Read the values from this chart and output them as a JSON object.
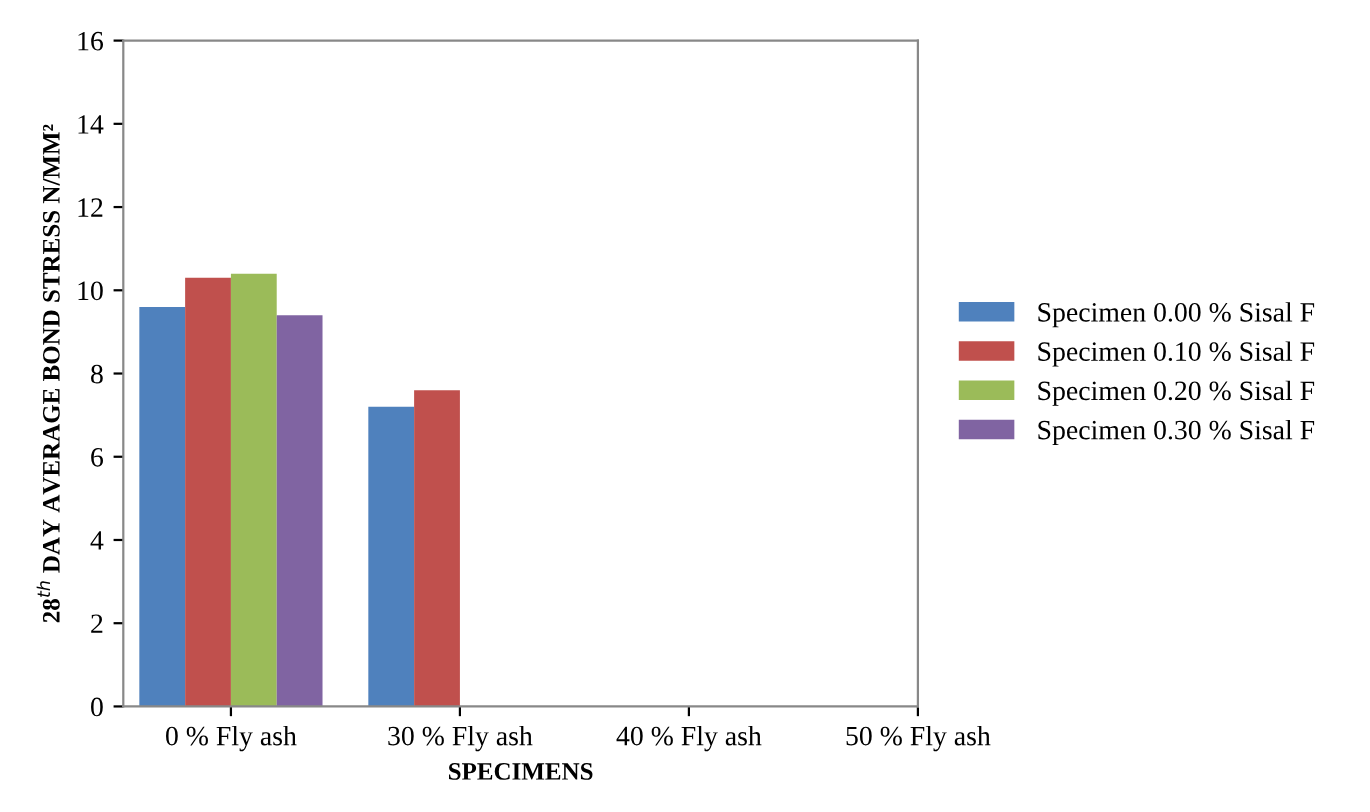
{
  "chart_data": {
    "type": "bar",
    "xlabel": "SPECIMENS",
    "ylabel": "28$^{th}$ DAY AVERAGE BOND STRESS N/MM²",
    "categories": [
      "0 % Fly ash",
      "30 % Fly ash",
      "40 % Fly ash",
      "50 % Fly ash"
    ],
    "series": [
      {
        "name": "Specimen 0.00 % Sisal F",
        "color": "#4f81bd",
        "values": [
          9.6,
          7.2,
          null,
          null
        ]
      },
      {
        "name": "Specimen 0.10 % Sisal F",
        "color": "#c0504d",
        "values": [
          10.3,
          7.6,
          null,
          null
        ]
      },
      {
        "name": "Specimen 0.20 % Sisal F",
        "color": "#9bbb59",
        "values": [
          10.4,
          null,
          null,
          null
        ]
      },
      {
        "name": "Specimen 0.30 % Sisal F",
        "color": "#8064a2",
        "values": [
          9.4,
          null,
          null,
          null
        ]
      }
    ],
    "ylim": [
      0,
      16
    ],
    "yticks": [
      0,
      2,
      4,
      6,
      8,
      10,
      12,
      14,
      16
    ],
    "grid": false,
    "legend": "right"
  }
}
